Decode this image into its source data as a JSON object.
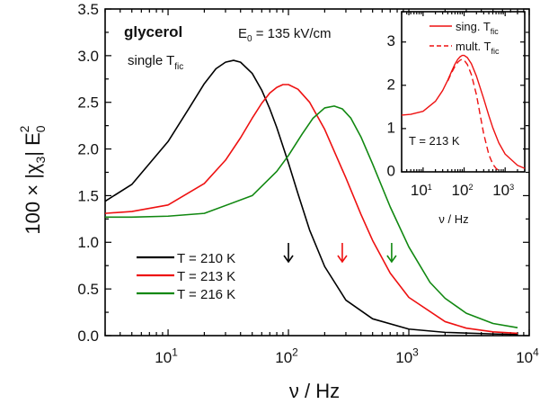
{
  "chart_data": [
    {
      "type": "line",
      "xscale": "log",
      "xlim": [
        3,
        10000
      ],
      "ylim": [
        0,
        3.5
      ],
      "xlabel": "ν / Hz",
      "ylabel_main": "100 × |χ",
      "ylabel_sub": "3",
      "ylabel_mid": "| E",
      "ylabel_sub2": "0",
      "ylabel_sup": "2",
      "x_tick_labels": [
        {
          "base": "10",
          "exp": "1",
          "x": 10
        },
        {
          "base": "10",
          "exp": "2",
          "x": 100
        },
        {
          "base": "10",
          "exp": "3",
          "x": 1000
        },
        {
          "base": "10",
          "exp": "4",
          "x": 10000
        }
      ],
      "y_ticks": [
        "0.0",
        "0.5",
        "1.0",
        "1.5",
        "2.0",
        "2.5",
        "3.0",
        "3.5"
      ],
      "y_tick_values": [
        0,
        0.5,
        1.0,
        1.5,
        2.0,
        2.5,
        3.0,
        3.5
      ],
      "annotations": {
        "material": "glycerol",
        "field_main": "E",
        "field_sub": "0",
        "field_rest": " = 135 kV/cm",
        "mode_main": "single T",
        "mode_sub": "fic"
      },
      "legend_position": "bottom-left",
      "series": [
        {
          "name": "T = 210 K",
          "color": "#000000",
          "x": [
            3,
            5,
            10,
            15,
            20,
            25,
            30,
            35,
            40,
            50,
            60,
            70,
            80,
            100,
            120,
            150,
            200,
            300,
            500,
            1000,
            2000,
            5000,
            8000
          ],
          "y": [
            1.44,
            1.62,
            2.08,
            2.44,
            2.7,
            2.86,
            2.93,
            2.95,
            2.93,
            2.81,
            2.63,
            2.43,
            2.23,
            1.85,
            1.52,
            1.13,
            0.74,
            0.38,
            0.18,
            0.07,
            0.035,
            0.018,
            0.012
          ],
          "arrow_x": 100
        },
        {
          "name": "T = 213 K",
          "color": "#ee1111",
          "x": [
            3,
            5,
            10,
            20,
            30,
            40,
            50,
            60,
            70,
            80,
            90,
            100,
            120,
            150,
            200,
            300,
            400,
            500,
            700,
            1000,
            2000,
            3000,
            5000,
            8000
          ],
          "y": [
            1.31,
            1.33,
            1.4,
            1.63,
            1.88,
            2.12,
            2.33,
            2.49,
            2.6,
            2.66,
            2.69,
            2.69,
            2.64,
            2.5,
            2.21,
            1.69,
            1.3,
            1.02,
            0.67,
            0.41,
            0.15,
            0.08,
            0.04,
            0.025
          ],
          "arrow_x": 280
        },
        {
          "name": "T = 216 K",
          "color": "#118811",
          "x": [
            3,
            5,
            10,
            20,
            50,
            80,
            100,
            130,
            160,
            200,
            240,
            280,
            330,
            400,
            500,
            700,
            1000,
            1500,
            2000,
            3000,
            5000,
            8000
          ],
          "y": [
            1.27,
            1.27,
            1.28,
            1.31,
            1.5,
            1.76,
            1.93,
            2.16,
            2.33,
            2.44,
            2.46,
            2.43,
            2.33,
            2.13,
            1.84,
            1.38,
            0.95,
            0.57,
            0.4,
            0.24,
            0.13,
            0.085
          ],
          "arrow_x": 720
        }
      ]
    },
    {
      "type": "line",
      "xscale": "log",
      "xlim": [
        3,
        3000
      ],
      "ylim": [
        0,
        3.7
      ],
      "xlabel": "ν / Hz",
      "x_tick_labels": [
        {
          "base": "10",
          "exp": "1",
          "x": 10
        },
        {
          "base": "10",
          "exp": "2",
          "x": 100
        },
        {
          "base": "10",
          "exp": "3",
          "x": 1000
        }
      ],
      "y_ticks": [
        "0",
        "1",
        "2",
        "3"
      ],
      "y_tick_values": [
        0,
        1,
        2,
        3
      ],
      "annotation": "T = 213 K",
      "legend_position": "top-right",
      "series": [
        {
          "name_main": "sing. T",
          "name_sub": "fic",
          "color": "#ee1111",
          "dash": false,
          "x": [
            3,
            5,
            10,
            20,
            30,
            40,
            50,
            60,
            70,
            80,
            90,
            100,
            120,
            150,
            200,
            300,
            400,
            500,
            700,
            1000,
            2000,
            3000
          ],
          "y": [
            1.31,
            1.33,
            1.4,
            1.63,
            1.88,
            2.12,
            2.33,
            2.49,
            2.6,
            2.66,
            2.69,
            2.69,
            2.64,
            2.5,
            2.21,
            1.69,
            1.3,
            1.02,
            0.67,
            0.41,
            0.15,
            0.08
          ]
        },
        {
          "name_main": "mult. T",
          "name_sub": "fic",
          "color": "#ee1111",
          "dash": true,
          "x": [
            40,
            50,
            60,
            70,
            80,
            90,
            100,
            120,
            150,
            200,
            250,
            300,
            400,
            500,
            600,
            700
          ],
          "y": [
            2.1,
            2.3,
            2.44,
            2.53,
            2.58,
            2.6,
            2.58,
            2.48,
            2.25,
            1.78,
            1.28,
            0.88,
            0.4,
            0.18,
            0.08,
            0.03
          ]
        }
      ]
    }
  ]
}
